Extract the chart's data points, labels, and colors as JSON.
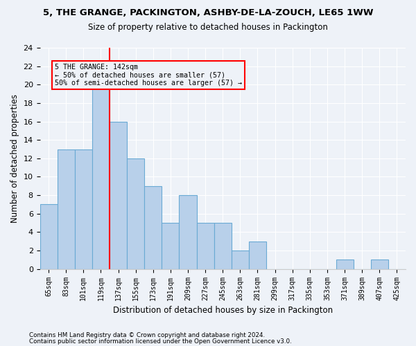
{
  "title1": "5, THE GRANGE, PACKINGTON, ASHBY-DE-LA-ZOUCH, LE65 1WW",
  "title2": "Size of property relative to detached houses in Packington",
  "xlabel": "Distribution of detached houses by size in Packington",
  "ylabel": "Number of detached properties",
  "bar_values": [
    7,
    13,
    13,
    20,
    16,
    12,
    9,
    5,
    8,
    5,
    5,
    2,
    3,
    0,
    0,
    0,
    0,
    1,
    0,
    1,
    0
  ],
  "bar_labels": [
    "65sqm",
    "83sqm",
    "101sqm",
    "119sqm",
    "137sqm",
    "155sqm",
    "173sqm",
    "191sqm",
    "209sqm",
    "227sqm",
    "245sqm",
    "263sqm",
    "281sqm",
    "299sqm",
    "317sqm",
    "335sqm",
    "353sqm",
    "371sqm",
    "389sqm",
    "407sqm",
    "425sqm"
  ],
  "bar_color": "#b8d0ea",
  "bar_edgecolor": "#6aaad4",
  "ylim": [
    0,
    24
  ],
  "yticks": [
    0,
    2,
    4,
    6,
    8,
    10,
    12,
    14,
    16,
    18,
    20,
    22,
    24
  ],
  "vline_color": "red",
  "annotation_line1": "5 THE GRANGE: 142sqm",
  "annotation_line2": "← 50% of detached houses are smaller (57)",
  "annotation_line3": "50% of semi-detached houses are larger (57) →",
  "annotation_box_color": "red",
  "footer1": "Contains HM Land Registry data © Crown copyright and database right 2024.",
  "footer2": "Contains public sector information licensed under the Open Government Licence v3.0.",
  "bg_color": "#eef2f8",
  "grid_color": "#ffffff"
}
